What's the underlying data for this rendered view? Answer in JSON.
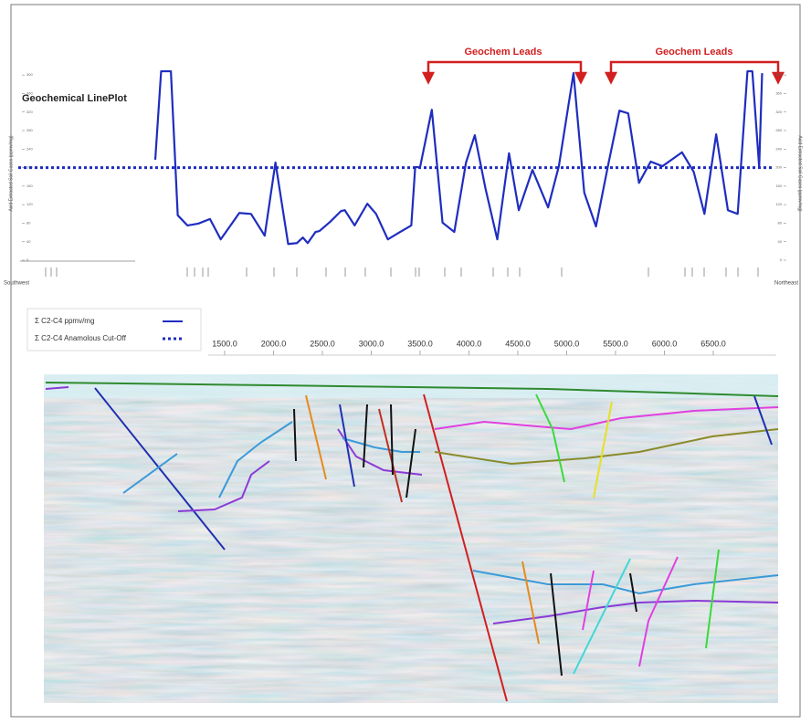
{
  "chart_data": {
    "type": "line",
    "title": "Geochemical LinePlot",
    "y_label": "Acid Extracted Soil Gases (ppmv/mg)",
    "left_label": "Southwest",
    "right_label": "Northeast",
    "annotations": [
      "Geochem Leads",
      "Geochem Leads"
    ],
    "x": [
      790,
      850,
      950,
      1020,
      1120,
      1230,
      1350,
      1460,
      1650,
      1770,
      1910,
      2020,
      2150,
      2240,
      2300,
      2350,
      2430,
      2470,
      2580,
      2690,
      2730,
      2830,
      2960,
      3050,
      3170,
      3280,
      3410,
      3450,
      3500,
      3620,
      3730,
      3850,
      3970,
      4060,
      4170,
      4290,
      4410,
      4510,
      4650,
      4810,
      4920,
      5070,
      5180,
      5300,
      5420,
      5540,
      5630,
      5740,
      5860,
      5980,
      6180,
      6300,
      6410,
      6530,
      6650,
      6750,
      6850,
      6900,
      6970,
      7000
    ],
    "series": [
      {
        "name": "Σ C2-C4 ppmv/mg",
        "color": "#1f2dbf",
        "values": [
          217,
          408,
          408,
          97,
          75,
          79,
          89,
          45,
          102,
          100,
          53,
          211,
          35,
          37,
          49,
          37,
          61,
          63,
          83,
          106,
          108,
          75,
          122,
          100,
          45,
          59,
          75,
          201,
          201,
          325,
          81,
          61,
          211,
          270,
          154,
          45,
          231,
          108,
          195,
          114,
          203,
          404,
          146,
          73,
          201,
          323,
          317,
          167,
          213,
          203,
          233,
          191,
          100,
          272,
          108,
          100,
          408,
          408,
          201,
          404
        ]
      }
    ],
    "cutoff": {
      "name": "Σ C2-C4 Anamolous Cut-Off",
      "value": 200,
      "color": "#1f2dbf"
    },
    "xlim": [
      790,
      7005
    ],
    "xticks": [
      {
        "value": 1500,
        "label": "1500.0"
      },
      {
        "value": 2000,
        "label": "2000.0"
      },
      {
        "value": 2500,
        "label": "2500.0"
      },
      {
        "value": 3000,
        "label": "3000.0"
      },
      {
        "value": 3500,
        "label": "3500.0"
      },
      {
        "value": 4000,
        "label": "4000.0"
      },
      {
        "value": 4500,
        "label": "4500.0"
      },
      {
        "value": 5000,
        "label": "5000.0"
      },
      {
        "value": 5500,
        "label": "5500.0"
      },
      {
        "value": 6000,
        "label": "6000.0"
      },
      {
        "value": 6500,
        "label": "6500.0"
      }
    ],
    "ylim": [
      0,
      420
    ],
    "yticks": [
      0,
      40,
      80,
      120,
      160,
      200,
      240,
      280,
      320,
      360,
      400
    ]
  }
}
